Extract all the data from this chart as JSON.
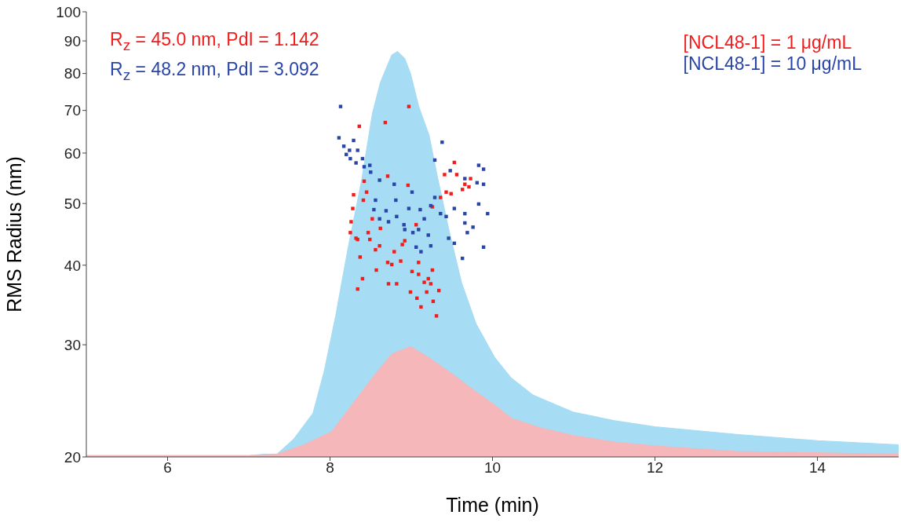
{
  "chart_data": {
    "type": "area",
    "xlabel": "Time (min)",
    "ylabel": "RMS Radius (nm)",
    "xlim": [
      5,
      15
    ],
    "xticks": [
      6,
      8,
      10,
      12,
      14
    ],
    "ylim": [
      20,
      100
    ],
    "yticks": [
      20,
      30,
      40,
      50,
      60,
      70,
      80,
      90,
      100
    ],
    "log": true,
    "grid": false,
    "legend": "top right",
    "annotations": [
      "R$_{z}$ = 45.0 nm, PdI = 1.142",
      "R$_{z}$ = 48.2 nm, PdI = 3.092"
    ],
    "series": [
      {
        "color": "#a6dcf4",
        "x": [
          5,
          6,
          7,
          7.2,
          7.35,
          7.55,
          7.79,
          7.93,
          8.07,
          8.22,
          8.39,
          8.52,
          8.62,
          8.76,
          8.83,
          8.92,
          8.99,
          9.09,
          9.22,
          9.32,
          9.46,
          9.62,
          9.8,
          10.03,
          10.23,
          10.5,
          11,
          11.5,
          12,
          13,
          14,
          15
        ],
        "values": [
          20.1,
          20.1,
          20.1,
          20.2,
          20.2,
          21.3,
          23.4,
          27.3,
          33.3,
          42.4,
          54.4,
          69.0,
          77.4,
          85.5,
          86.6,
          84.4,
          80.0,
          71.1,
          63.9,
          55.2,
          45.6,
          37.5,
          32.3,
          28.6,
          26.6,
          25.0,
          23.5,
          22.8,
          22.3,
          21.7,
          21.2,
          20.9
        ]
      },
      {
        "color": "#f5b7b9",
        "x": [
          5,
          6,
          7,
          7.35,
          7.68,
          8.02,
          8.32,
          8.52,
          8.76,
          8.99,
          9.22,
          9.5,
          9.76,
          10.03,
          10.23,
          10.6,
          11,
          11.5,
          12,
          13,
          14,
          15
        ],
        "values": [
          20.1,
          20.1,
          20.1,
          20.2,
          20.9,
          21.9,
          24.6,
          26.6,
          29.0,
          29.8,
          28.6,
          27.0,
          25.5,
          24.1,
          23.0,
          22.2,
          21.6,
          21.1,
          20.8,
          20.4,
          20.3,
          20.2
        ]
      },
      {
        "type": "scatter",
        "name": "[NCL48-1] = 1 μg/mL",
        "color": "#f21c1c",
        "marker": "square",
        "x": [
          8.97,
          8.68,
          8.36,
          8.71,
          8.96,
          8.42,
          8.45,
          8.29,
          8.41,
          8.28,
          8.26,
          8.25,
          8.32,
          8.34,
          8.47,
          8.49,
          8.62,
          8.61,
          8.56,
          8.52,
          8.79,
          8.89,
          8.92,
          8.87,
          8.71,
          8.76,
          8.37,
          8.4,
          8.34,
          8.57,
          8.72,
          8.82,
          9.09,
          9.01,
          9.09,
          9.26,
          9.16,
          9.21,
          9.24,
          8.99,
          9.19,
          9.34,
          9.07,
          9.12,
          9.27,
          9.31,
          9.53,
          9.41,
          9.56,
          9.66,
          9.73,
          9.63,
          9.71,
          9.49,
          9.43,
          9.36,
          9.26,
          9.06
        ],
        "values": [
          71.0,
          67.0,
          66.1,
          55.2,
          53.4,
          54.2,
          52.1,
          51.6,
          50.6,
          49.1,
          46.8,
          45.0,
          44.1,
          43.9,
          45.0,
          43.9,
          45.7,
          42.9,
          42.3,
          47.3,
          42.0,
          43.1,
          43.7,
          40.6,
          40.4,
          40.1,
          41.2,
          38.1,
          36.7,
          39.3,
          37.4,
          37.4,
          40.4,
          39.1,
          38.7,
          39.3,
          37.6,
          38.1,
          37.4,
          36.3,
          36.3,
          36.5,
          35.5,
          34.4,
          35.1,
          33.3,
          58.0,
          55.5,
          55.5,
          53.6,
          54.7,
          52.6,
          53.1,
          51.8,
          52.1,
          51.1,
          49.4,
          46.3
        ]
      },
      {
        "type": "scatter",
        "name": "[NCL48-1] = 10 μg/mL",
        "color": "#2a45a8",
        "marker": "square",
        "x": [
          8.13,
          8.11,
          8.29,
          8.17,
          8.24,
          8.34,
          8.2,
          8.25,
          8.32,
          8.4,
          8.42,
          8.49,
          8.5,
          8.61,
          8.79,
          9.01,
          8.56,
          8.81,
          8.54,
          8.69,
          8.97,
          9.11,
          9.24,
          9.29,
          8.61,
          8.72,
          8.82,
          8.91,
          8.92,
          9.02,
          9.09,
          9.16,
          9.21,
          9.06,
          9.12,
          9.24,
          9.38,
          9.29,
          9.48,
          9.66,
          9.83,
          9.89,
          9.89,
          9.36,
          9.43,
          9.53,
          9.66,
          9.83,
          9.94,
          9.66,
          9.76,
          9.69,
          9.46,
          9.53,
          9.63,
          9.89,
          9.81
        ],
        "values": [
          71.0,
          63.4,
          62.8,
          61.5,
          60.6,
          60.6,
          59.7,
          58.8,
          57.9,
          58.8,
          57.1,
          57.4,
          56.0,
          54.4,
          53.6,
          52.1,
          50.6,
          50.6,
          48.9,
          48.7,
          49.1,
          48.9,
          49.6,
          51.1,
          47.3,
          46.8,
          47.7,
          46.3,
          45.5,
          45.0,
          45.5,
          47.3,
          44.6,
          42.7,
          42.0,
          42.9,
          62.4,
          58.5,
          56.3,
          54.7,
          57.4,
          56.6,
          53.6,
          48.2,
          47.7,
          49.1,
          48.2,
          49.9,
          48.2,
          46.6,
          45.9,
          45.0,
          44.1,
          43.3,
          41.0,
          42.7,
          53.9
        ]
      }
    ]
  }
}
